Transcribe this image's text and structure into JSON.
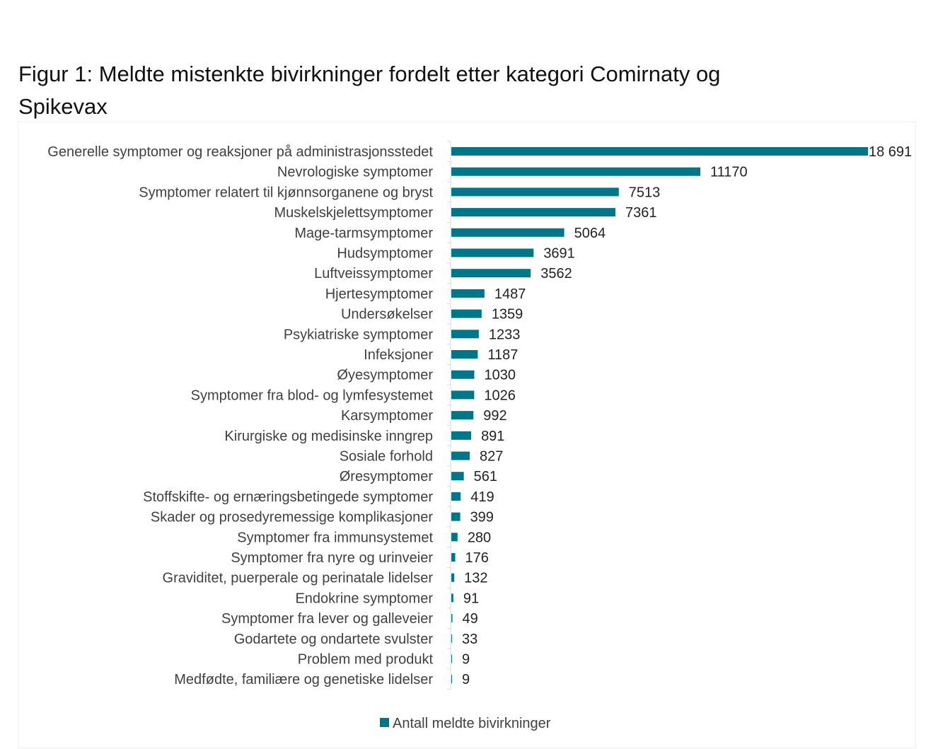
{
  "chart_data": {
    "type": "bar",
    "orientation": "horizontal",
    "title": "Figur 1: Meldte mistenkte bivirkninger fordelt etter kategori Comirnaty og Spikevax",
    "categories": [
      "Generelle symptomer og reaksjoner på administrasjonsstedet",
      "Nevrologiske symptomer",
      "Symptomer relatert til kjønnsorganene og bryst",
      "Muskelskjelettsymptomer",
      "Mage-tarmsymptomer",
      "Hudsymptomer",
      "Luftveissymptomer",
      "Hjertesymptomer",
      "Undersøkelser",
      "Psykiatriske symptomer",
      "Infeksjoner",
      "Øyesymptomer",
      "Symptomer fra blod- og lymfesystemet",
      "Karsymptomer",
      "Kirurgiske og medisinske inngrep",
      "Sosiale forhold",
      "Øresymptomer",
      "Stoffskifte- og ernæringsbetingede symptomer",
      "Skader og prosedyremessige komplikasjoner",
      "Symptomer fra immunsystemet",
      "Symptomer fra nyre og urinveier",
      "Graviditet, puerperale og perinatale lidelser",
      "Endokrine symptomer",
      "Symptomer fra lever og galleveier",
      "Godartete og ondartete svulster",
      "Problem med produkt",
      "Medfødte, familiære og genetiske lidelser"
    ],
    "series": [
      {
        "name": "Antall meldte bivirkninger",
        "color": "#007788",
        "values": [
          18691,
          11170,
          7513,
          7361,
          5064,
          3691,
          3562,
          1487,
          1359,
          1233,
          1187,
          1030,
          1026,
          992,
          891,
          827,
          561,
          419,
          399,
          280,
          176,
          132,
          91,
          49,
          33,
          9,
          9
        ],
        "value_labels": [
          "18 691",
          "11170",
          "7513",
          "7361",
          "5064",
          "3691",
          "3562",
          "1487",
          "1359",
          "1233",
          "1187",
          "1030",
          "1026",
          "992",
          "891",
          "827",
          "561",
          "419",
          "399",
          "280",
          "176",
          "132",
          "91",
          "49",
          "33",
          "9",
          "9"
        ]
      }
    ],
    "xlim": [
      0,
      18691
    ],
    "grid": false,
    "legend": "bottom"
  }
}
